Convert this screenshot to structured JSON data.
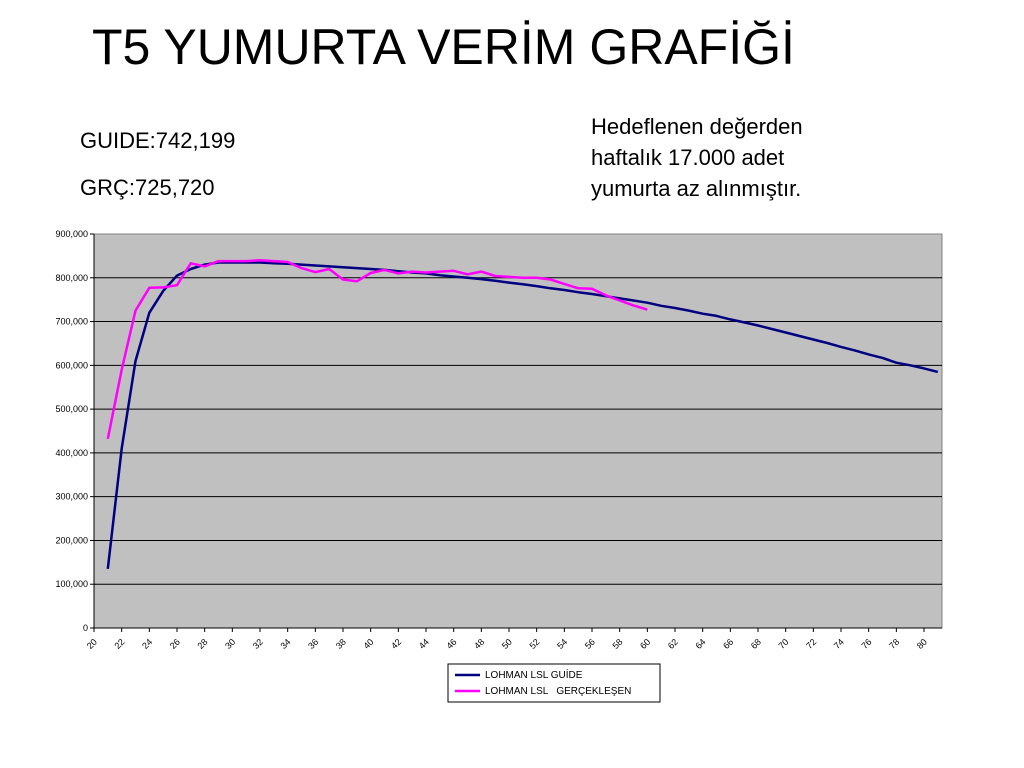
{
  "header": {
    "title": "T5 YUMURTA VERİM GRAFİĞİ",
    "guide_stat": "GUIDE:742,199",
    "grc_stat": "GRÇ:725,720",
    "note": "Hedeflenen değerden haftalık 17.000 adet yumurta az alınmıştır."
  },
  "colors": {
    "plot_background": "#c0c0c0",
    "guide_line": "#000080",
    "actual_line": "#ff00ff"
  },
  "chart_data": {
    "type": "line",
    "title": "",
    "xlabel": "",
    "ylabel": "",
    "xlim": [
      20,
      80
    ],
    "ylim": [
      0,
      900000
    ],
    "y_ticks": [
      "0",
      "100,000",
      "200,000",
      "300,000",
      "400,000",
      "500,000",
      "600,000",
      "700,000",
      "800,000",
      "900,000"
    ],
    "x_ticks": [
      "20",
      "22",
      "24",
      "26",
      "28",
      "30",
      "32",
      "34",
      "36",
      "38",
      "40",
      "42",
      "44",
      "46",
      "48",
      "50",
      "52",
      "54",
      "56",
      "58",
      "60",
      "62",
      "64",
      "66",
      "68",
      "70",
      "72",
      "74",
      "76",
      "78",
      "80"
    ],
    "grid": "horizontal",
    "legend_position": "bottom",
    "series": [
      {
        "name": "LOHMAN LSL GUİDE",
        "x": [
          21,
          22,
          23,
          24,
          25,
          26,
          27,
          28,
          29,
          30,
          31,
          32,
          33,
          34,
          35,
          36,
          37,
          38,
          39,
          40,
          41,
          42,
          43,
          44,
          45,
          46,
          47,
          48,
          49,
          50,
          51,
          52,
          53,
          54,
          55,
          56,
          57,
          58,
          59,
          60,
          61,
          62,
          63,
          64,
          65,
          66,
          67,
          68,
          69,
          70,
          71,
          72,
          73,
          74,
          75,
          76,
          77,
          78,
          79,
          80,
          81
        ],
        "values": [
          135000,
          410000,
          610000,
          720000,
          770000,
          805000,
          820000,
          830000,
          835000,
          835000,
          835000,
          835000,
          833000,
          832000,
          830000,
          828000,
          826000,
          824000,
          822000,
          820000,
          818000,
          815000,
          812000,
          810000,
          806000,
          803000,
          800000,
          797000,
          793000,
          789000,
          785000,
          781000,
          776000,
          772000,
          767000,
          763000,
          758000,
          753000,
          748000,
          743000,
          736000,
          731000,
          725000,
          718000,
          713000,
          705000,
          698000,
          691000,
          683000,
          675000,
          667000,
          659000,
          651000,
          642000,
          634000,
          625000,
          617000,
          606000,
          600000,
          593000,
          585000
        ]
      },
      {
        "name": "LOHMAN LSL   GERÇEKLEŞEN",
        "x": [
          21,
          22,
          23,
          24,
          25,
          26,
          27,
          28,
          29,
          30,
          31,
          32,
          33,
          34,
          35,
          36,
          37,
          38,
          39,
          40,
          41,
          42,
          43,
          44,
          45,
          46,
          47,
          48,
          49,
          50,
          51,
          52,
          53,
          54,
          55,
          56,
          57,
          58,
          59,
          60
        ],
        "values": [
          432000,
          590000,
          725000,
          777000,
          778000,
          783000,
          833000,
          826000,
          838000,
          838000,
          838000,
          840000,
          838000,
          836000,
          822000,
          813000,
          820000,
          796000,
          792000,
          811000,
          818000,
          810000,
          814000,
          812000,
          814000,
          816000,
          808000,
          814000,
          804000,
          802000,
          800000,
          800000,
          796000,
          786000,
          776000,
          775000,
          760000,
          748000,
          737000,
          727000
        ]
      }
    ]
  }
}
